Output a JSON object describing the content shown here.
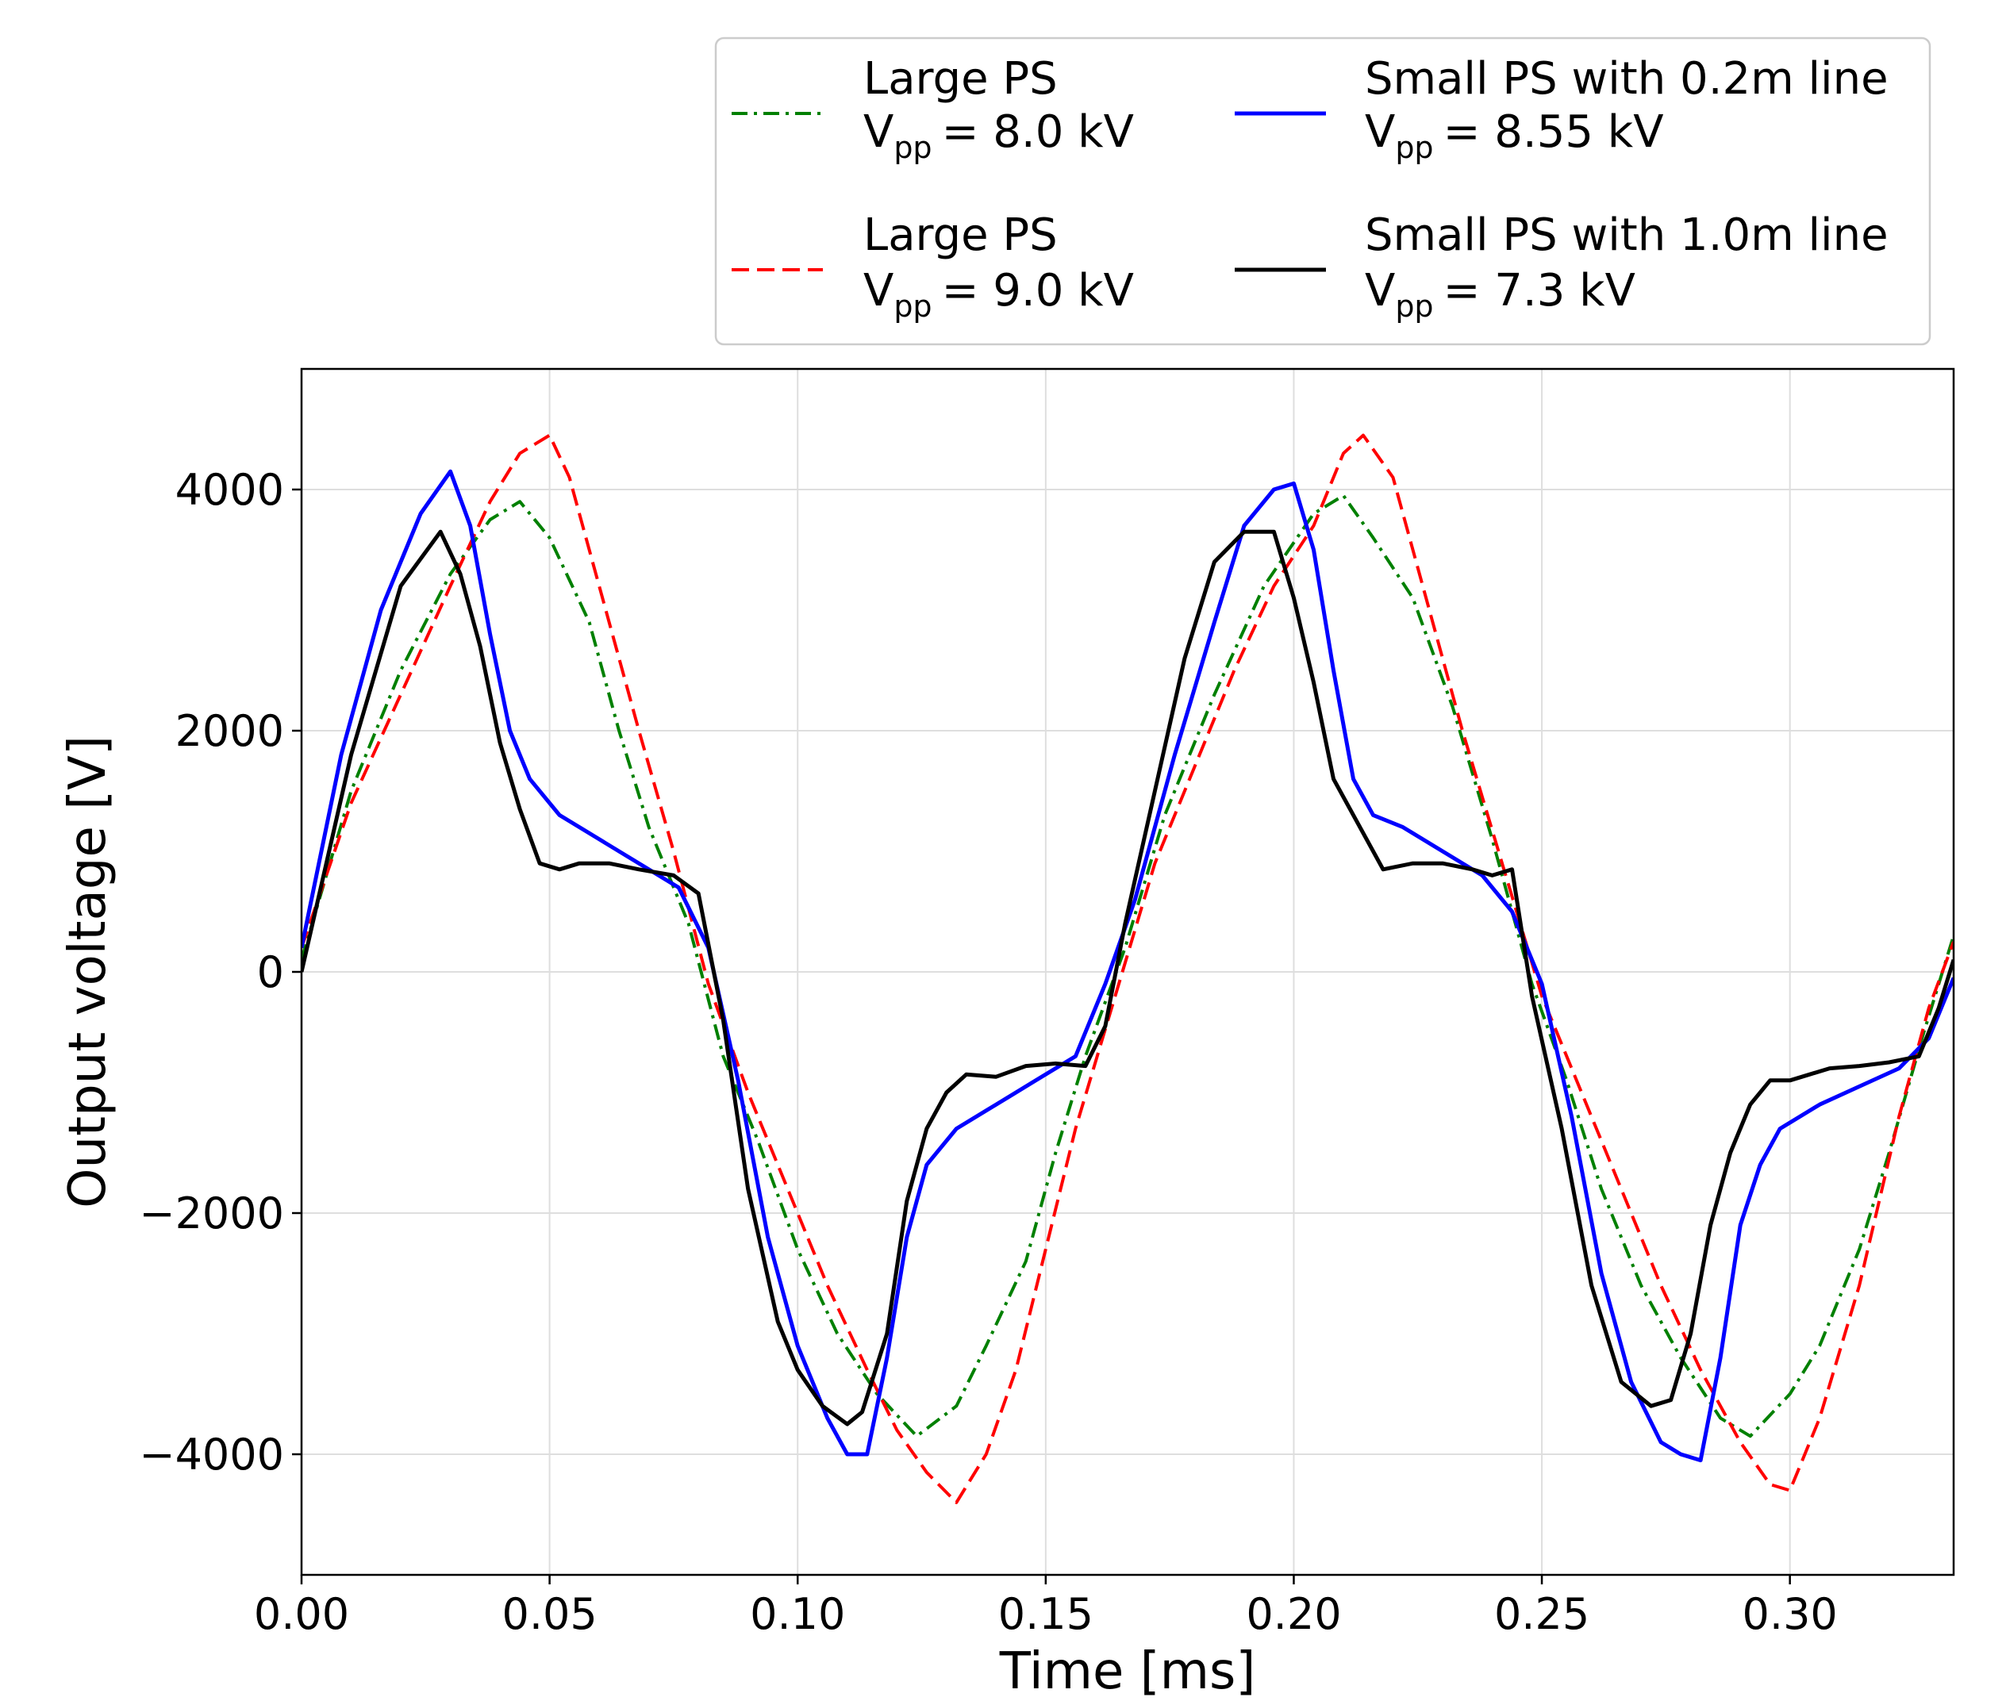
{
  "chart_data": {
    "type": "line",
    "xlabel": "Time [ms]",
    "ylabel": "Output voltage [V]",
    "xlim": [
      0.0,
      0.333
    ],
    "ylim": [
      -5000,
      5000
    ],
    "xticks": [
      0.0,
      0.05,
      0.1,
      0.15,
      0.2,
      0.25,
      0.3
    ],
    "xtick_labels": [
      "0.00",
      "0.05",
      "0.10",
      "0.15",
      "0.20",
      "0.25",
      "0.30"
    ],
    "yticks": [
      -4000,
      -2000,
      0,
      2000,
      4000
    ],
    "ytick_labels": [
      "−4000",
      "−2000",
      "0",
      "2000",
      "4000"
    ],
    "grid": true,
    "legend_position": "top-right, above plot",
    "series": [
      {
        "name": "Large PS 8.0 kV",
        "legend_line1": "Large PS",
        "vpp_sub": "pp",
        "vpp_value": "= 8.0 kV",
        "color": "#008000",
        "style": "dashdot",
        "x": [
          0.0,
          0.01,
          0.02,
          0.03,
          0.038,
          0.044,
          0.05,
          0.058,
          0.064,
          0.07,
          0.078,
          0.085,
          0.092,
          0.1,
          0.108,
          0.116,
          0.124,
          0.132,
          0.138,
          0.146,
          0.152,
          0.158,
          0.166,
          0.174,
          0.184,
          0.194,
          0.204,
          0.21,
          0.216,
          0.224,
          0.232,
          0.24,
          0.248,
          0.255,
          0.262,
          0.27,
          0.278,
          0.286,
          0.292,
          0.3,
          0.306,
          0.314,
          0.32,
          0.327,
          0.333
        ],
        "values": [
          100,
          1500,
          2500,
          3300,
          3750,
          3900,
          3600,
          2900,
          2000,
          1200,
          400,
          -700,
          -1400,
          -2300,
          -3000,
          -3500,
          -3850,
          -3600,
          -3100,
          -2400,
          -1500,
          -700,
          200,
          1300,
          2300,
          3200,
          3800,
          3950,
          3600,
          3100,
          2200,
          1100,
          -100,
          -900,
          -1800,
          -2600,
          -3200,
          -3700,
          -3850,
          -3500,
          -3100,
          -2300,
          -1500,
          -500,
          300
        ]
      },
      {
        "name": "Large PS 9.0 kV",
        "legend_line1": "Large PS",
        "vpp_sub": "pp",
        "vpp_value": "= 9.0 kV",
        "color": "#ff0000",
        "style": "dashed",
        "x": [
          0.0,
          0.01,
          0.02,
          0.03,
          0.038,
          0.044,
          0.05,
          0.054,
          0.06,
          0.068,
          0.075,
          0.082,
          0.09,
          0.098,
          0.106,
          0.114,
          0.12,
          0.126,
          0.132,
          0.138,
          0.144,
          0.15,
          0.156,
          0.164,
          0.172,
          0.18,
          0.188,
          0.196,
          0.204,
          0.21,
          0.214,
          0.22,
          0.226,
          0.234,
          0.242,
          0.25,
          0.258,
          0.266,
          0.274,
          0.282,
          0.29,
          0.296,
          0.3,
          0.306,
          0.314,
          0.322,
          0.328,
          0.333
        ],
        "values": [
          200,
          1400,
          2300,
          3200,
          3900,
          4300,
          4450,
          4100,
          3200,
          2000,
          1000,
          -100,
          -1000,
          -1800,
          -2600,
          -3300,
          -3800,
          -4150,
          -4400,
          -4000,
          -3300,
          -2300,
          -1300,
          -200,
          900,
          1700,
          2500,
          3200,
          3700,
          4300,
          4450,
          4100,
          3200,
          2000,
          900,
          -200,
          -1000,
          -1800,
          -2600,
          -3300,
          -3900,
          -4250,
          -4300,
          -3700,
          -2600,
          -1200,
          -300,
          250
        ]
      },
      {
        "name": "Small PS with 0.2m line",
        "legend_line1": "Small PS with 0.2m line",
        "vpp_sub": "pp",
        "vpp_value": "= 8.55 kV",
        "color": "#0000ff",
        "style": "solid",
        "x": [
          0.0,
          0.008,
          0.016,
          0.024,
          0.03,
          0.034,
          0.038,
          0.042,
          0.046,
          0.052,
          0.06,
          0.068,
          0.076,
          0.082,
          0.088,
          0.094,
          0.1,
          0.106,
          0.11,
          0.114,
          0.118,
          0.122,
          0.126,
          0.132,
          0.14,
          0.148,
          0.156,
          0.162,
          0.168,
          0.176,
          0.184,
          0.19,
          0.196,
          0.2,
          0.204,
          0.208,
          0.212,
          0.216,
          0.222,
          0.23,
          0.238,
          0.244,
          0.25,
          0.256,
          0.262,
          0.268,
          0.274,
          0.278,
          0.282,
          0.286,
          0.29,
          0.294,
          0.298,
          0.306,
          0.314,
          0.322,
          0.328,
          0.333
        ],
        "values": [
          200,
          1800,
          3000,
          3800,
          4150,
          3700,
          2800,
          2000,
          1600,
          1300,
          1100,
          900,
          700,
          200,
          -900,
          -2200,
          -3100,
          -3700,
          -4000,
          -4000,
          -3200,
          -2200,
          -1600,
          -1300,
          -1100,
          -900,
          -700,
          -100,
          600,
          1800,
          2900,
          3700,
          4000,
          4050,
          3500,
          2500,
          1600,
          1300,
          1200,
          1000,
          800,
          500,
          -100,
          -1200,
          -2500,
          -3400,
          -3900,
          -4000,
          -4050,
          -3200,
          -2100,
          -1600,
          -1300,
          -1100,
          -950,
          -800,
          -550,
          -50
        ]
      },
      {
        "name": "Small PS with 1.0m line",
        "legend_line1": "Small PS with 1.0m line",
        "vpp_sub": "pp",
        "vpp_value": "= 7.3 kV",
        "color": "#000000",
        "style": "solid",
        "x": [
          0.0,
          0.01,
          0.02,
          0.028,
          0.032,
          0.036,
          0.04,
          0.044,
          0.048,
          0.052,
          0.056,
          0.062,
          0.068,
          0.075,
          0.08,
          0.085,
          0.09,
          0.096,
          0.1,
          0.105,
          0.11,
          0.113,
          0.118,
          0.122,
          0.126,
          0.13,
          0.134,
          0.14,
          0.146,
          0.152,
          0.158,
          0.162,
          0.166,
          0.172,
          0.178,
          0.184,
          0.19,
          0.196,
          0.2,
          0.204,
          0.208,
          0.214,
          0.218,
          0.224,
          0.23,
          0.236,
          0.24,
          0.244,
          0.248,
          0.254,
          0.26,
          0.266,
          0.272,
          0.276,
          0.28,
          0.284,
          0.288,
          0.292,
          0.296,
          0.3,
          0.304,
          0.308,
          0.314,
          0.32,
          0.326,
          0.33,
          0.333
        ],
        "values": [
          0,
          1800,
          3200,
          3650,
          3300,
          2700,
          1900,
          1350,
          900,
          850,
          900,
          900,
          850,
          800,
          650,
          -400,
          -1800,
          -2900,
          -3300,
          -3600,
          -3750,
          -3650,
          -3000,
          -1900,
          -1300,
          -1000,
          -850,
          -870,
          -780,
          -760,
          -780,
          -450,
          400,
          1500,
          2600,
          3400,
          3650,
          3650,
          3100,
          2400,
          1600,
          1150,
          850,
          900,
          900,
          850,
          800,
          850,
          -200,
          -1300,
          -2600,
          -3400,
          -3600,
          -3550,
          -3000,
          -2100,
          -1500,
          -1100,
          -900,
          -900,
          -850,
          -800,
          -780,
          -750,
          -700,
          -300,
          100
        ]
      }
    ]
  }
}
